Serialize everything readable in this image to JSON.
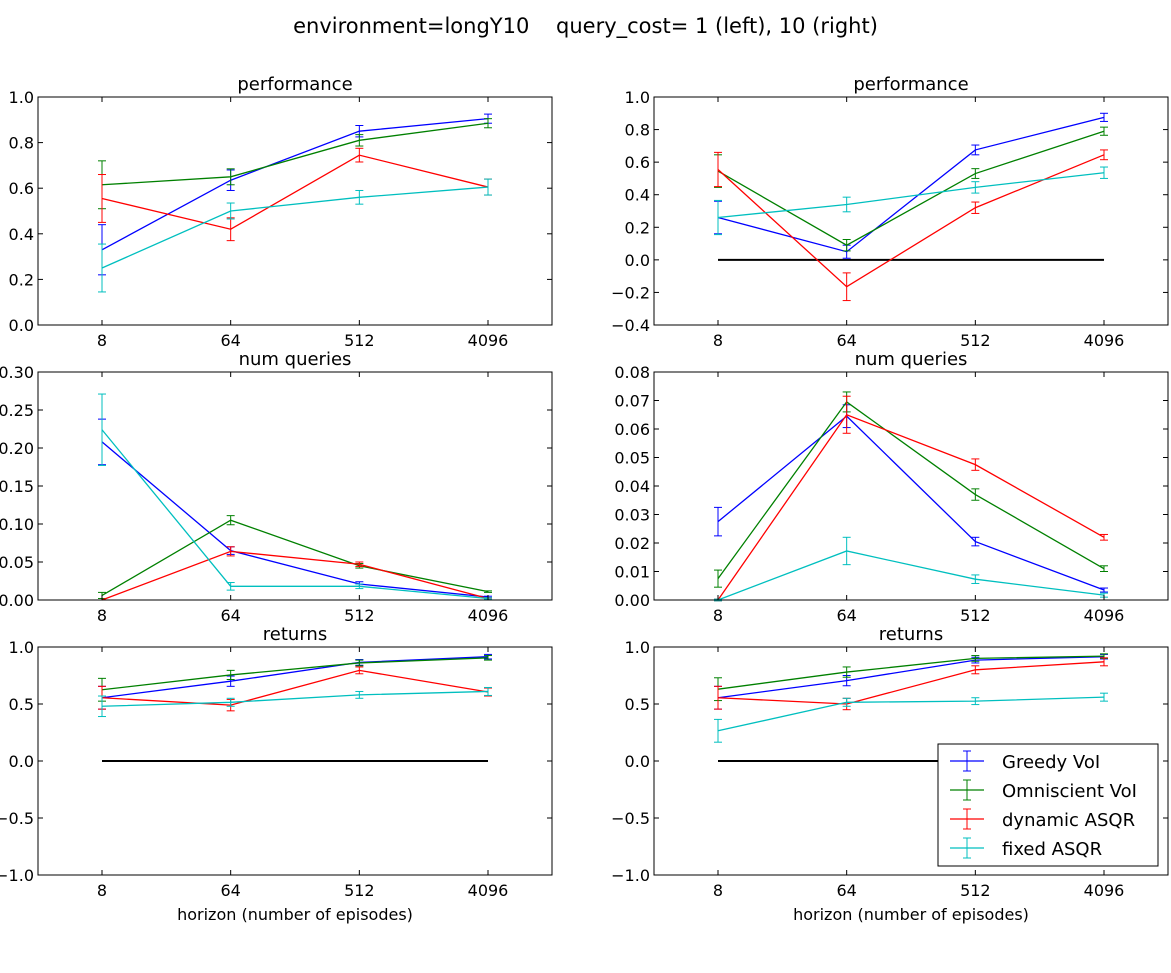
{
  "suptitle": "environment=longY10    query_cost= 1 (left), 10 (right)",
  "colors": {
    "Greedy VoI": "#0000ff",
    "Omniscient VoI": "#008000",
    "dynamic ASQR": "#ff0000",
    "fixed ASQR": "#00bfbf",
    "zero_line": "#000000"
  },
  "legend": {
    "location": "lower right of bottom-right panel",
    "entries": [
      "Greedy VoI",
      "Omniscient VoI",
      "dynamic ASQR",
      "fixed ASQR"
    ]
  },
  "chart_data": [
    {
      "type": "line",
      "panel": "top-left",
      "title": "performance",
      "xlabel": "",
      "ylabel": "",
      "categories": [
        "8",
        "64",
        "512",
        "4096"
      ],
      "ylim": [
        0.0,
        1.0
      ],
      "yticks": [
        0.0,
        0.2,
        0.4,
        0.6,
        0.8,
        1.0
      ],
      "ytick_labels": [
        "0.0",
        "0.2",
        "0.4",
        "0.6",
        "0.8",
        "1.0"
      ],
      "zero_line": false,
      "series": [
        {
          "name": "Greedy VoI",
          "values": [
            0.33,
            0.635,
            0.85,
            0.905
          ],
          "errors": [
            0.11,
            0.045,
            0.025,
            0.02
          ]
        },
        {
          "name": "Omniscient VoI",
          "values": [
            0.615,
            0.65,
            0.81,
            0.885
          ],
          "errors": [
            0.105,
            0.035,
            0.025,
            0.02
          ]
        },
        {
          "name": "dynamic ASQR",
          "values": [
            0.555,
            0.42,
            0.745,
            0.605
          ],
          "errors": [
            0.105,
            0.05,
            0.03,
            0.035
          ]
        },
        {
          "name": "fixed ASQR",
          "values": [
            0.25,
            0.5,
            0.56,
            0.605
          ],
          "errors": [
            0.105,
            0.035,
            0.03,
            0.035
          ]
        }
      ]
    },
    {
      "type": "line",
      "panel": "top-right",
      "title": "performance",
      "xlabel": "",
      "ylabel": "",
      "categories": [
        "8",
        "64",
        "512",
        "4096"
      ],
      "ylim": [
        -0.4,
        1.0
      ],
      "yticks": [
        -0.4,
        -0.2,
        0.0,
        0.2,
        0.4,
        0.6,
        0.8,
        1.0
      ],
      "ytick_labels": [
        "−0.4",
        "−0.2",
        "0.0",
        "0.2",
        "0.4",
        "0.6",
        "0.8",
        "1.0"
      ],
      "zero_line": true,
      "series": [
        {
          "name": "Greedy VoI",
          "values": [
            0.26,
            0.05,
            0.675,
            0.875
          ],
          "errors": [
            0.1,
            0.04,
            0.03,
            0.025
          ]
        },
        {
          "name": "Omniscient VoI",
          "values": [
            0.545,
            0.09,
            0.53,
            0.79
          ],
          "errors": [
            0.1,
            0.035,
            0.03,
            0.025
          ]
        },
        {
          "name": "dynamic ASQR",
          "values": [
            0.555,
            -0.165,
            0.32,
            0.645
          ],
          "errors": [
            0.105,
            0.085,
            0.035,
            0.03
          ]
        },
        {
          "name": "fixed ASQR",
          "values": [
            0.26,
            0.34,
            0.445,
            0.535
          ],
          "errors": [
            0.105,
            0.045,
            0.035,
            0.035
          ]
        }
      ]
    },
    {
      "type": "line",
      "panel": "middle-left",
      "title": "num queries",
      "xlabel": "",
      "ylabel": "",
      "categories": [
        "8",
        "64",
        "512",
        "4096"
      ],
      "ylim": [
        0.0,
        0.3
      ],
      "yticks": [
        0.0,
        0.05,
        0.1,
        0.15,
        0.2,
        0.25,
        0.3
      ],
      "ytick_labels": [
        "0.00",
        "0.05",
        "0.10",
        "0.15",
        "0.20",
        "0.25",
        "0.30"
      ],
      "zero_line": false,
      "series": [
        {
          "name": "Greedy VoI",
          "values": [
            0.208,
            0.065,
            0.021,
            0.004
          ],
          "errors": [
            0.03,
            0.005,
            0.003,
            0.001
          ]
        },
        {
          "name": "Omniscient VoI",
          "values": [
            0.006,
            0.105,
            0.045,
            0.011
          ],
          "errors": [
            0.004,
            0.006,
            0.003,
            0.001
          ]
        },
        {
          "name": "dynamic ASQR",
          "values": [
            0.0,
            0.064,
            0.047,
            0.002
          ],
          "errors": [
            0.0,
            0.006,
            0.003,
            0.001
          ]
        },
        {
          "name": "fixed ASQR",
          "values": [
            0.224,
            0.018,
            0.018,
            0.002
          ],
          "errors": [
            0.047,
            0.005,
            0.003,
            0.001
          ]
        }
      ]
    },
    {
      "type": "line",
      "panel": "middle-right",
      "title": "num queries",
      "xlabel": "",
      "ylabel": "",
      "categories": [
        "8",
        "64",
        "512",
        "4096"
      ],
      "ylim": [
        0.0,
        0.08
      ],
      "yticks": [
        0.0,
        0.01,
        0.02,
        0.03,
        0.04,
        0.05,
        0.06,
        0.07,
        0.08
      ],
      "ytick_labels": [
        "0.00",
        "0.01",
        "0.02",
        "0.03",
        "0.04",
        "0.05",
        "0.06",
        "0.07",
        "0.08"
      ],
      "zero_line": false,
      "series": [
        {
          "name": "Greedy VoI",
          "values": [
            0.0275,
            0.0645,
            0.0205,
            0.0035
          ],
          "errors": [
            0.005,
            0.004,
            0.0015,
            0.0007
          ]
        },
        {
          "name": "Omniscient VoI",
          "values": [
            0.0075,
            0.0695,
            0.037,
            0.011
          ],
          "errors": [
            0.003,
            0.0035,
            0.002,
            0.001
          ]
        },
        {
          "name": "dynamic ASQR",
          "values": [
            0.0,
            0.065,
            0.0475,
            0.022
          ],
          "errors": [
            0.0003,
            0.0065,
            0.002,
            0.001
          ]
        },
        {
          "name": "fixed ASQR",
          "values": [
            0.0,
            0.0172,
            0.0073,
            0.0017
          ],
          "errors": [
            0.0003,
            0.0048,
            0.0015,
            0.0007
          ]
        }
      ]
    },
    {
      "type": "line",
      "panel": "bottom-left",
      "title": "returns",
      "xlabel": "horizon (number of episodes)",
      "ylabel": "",
      "categories": [
        "8",
        "64",
        "512",
        "4096"
      ],
      "ylim": [
        -1.0,
        1.0
      ],
      "yticks": [
        -1.0,
        -0.5,
        0.0,
        0.5,
        1.0
      ],
      "ytick_labels": [
        "−1.0",
        "−0.5",
        "0.0",
        "0.5",
        "1.0"
      ],
      "zero_line": true,
      "series": [
        {
          "name": "Greedy VoI",
          "values": [
            0.555,
            0.7,
            0.865,
            0.915
          ],
          "errors": [
            0.1,
            0.045,
            0.025,
            0.02
          ]
        },
        {
          "name": "Omniscient VoI",
          "values": [
            0.625,
            0.755,
            0.86,
            0.905
          ],
          "errors": [
            0.1,
            0.04,
            0.025,
            0.02
          ]
        },
        {
          "name": "dynamic ASQR",
          "values": [
            0.555,
            0.49,
            0.795,
            0.605
          ],
          "errors": [
            0.1,
            0.05,
            0.03,
            0.035
          ]
        },
        {
          "name": "fixed ASQR",
          "values": [
            0.48,
            0.515,
            0.58,
            0.61
          ],
          "errors": [
            0.09,
            0.035,
            0.03,
            0.035
          ]
        }
      ]
    },
    {
      "type": "line",
      "panel": "bottom-right",
      "title": "returns",
      "xlabel": "horizon (number of episodes)",
      "ylabel": "",
      "categories": [
        "8",
        "64",
        "512",
        "4096"
      ],
      "ylim": [
        -1.0,
        1.0
      ],
      "yticks": [
        -1.0,
        -0.5,
        0.0,
        0.5,
        1.0
      ],
      "ytick_labels": [
        "−1.0",
        "−0.5",
        "0.0",
        "0.5",
        "1.0"
      ],
      "zero_line": true,
      "legend": [
        "Greedy VoI",
        "Omniscient VoI",
        "dynamic ASQR",
        "fixed ASQR"
      ],
      "series": [
        {
          "name": "Greedy VoI",
          "values": [
            0.555,
            0.705,
            0.885,
            0.915
          ],
          "errors": [
            0.1,
            0.045,
            0.025,
            0.02
          ]
        },
        {
          "name": "Omniscient VoI",
          "values": [
            0.63,
            0.78,
            0.9,
            0.92
          ],
          "errors": [
            0.1,
            0.045,
            0.025,
            0.02
          ]
        },
        {
          "name": "dynamic ASQR",
          "values": [
            0.555,
            0.5,
            0.8,
            0.87
          ],
          "errors": [
            0.1,
            0.05,
            0.035,
            0.035
          ]
        },
        {
          "name": "fixed ASQR",
          "values": [
            0.265,
            0.515,
            0.525,
            0.56
          ],
          "errors": [
            0.1,
            0.035,
            0.03,
            0.035
          ]
        }
      ]
    }
  ]
}
